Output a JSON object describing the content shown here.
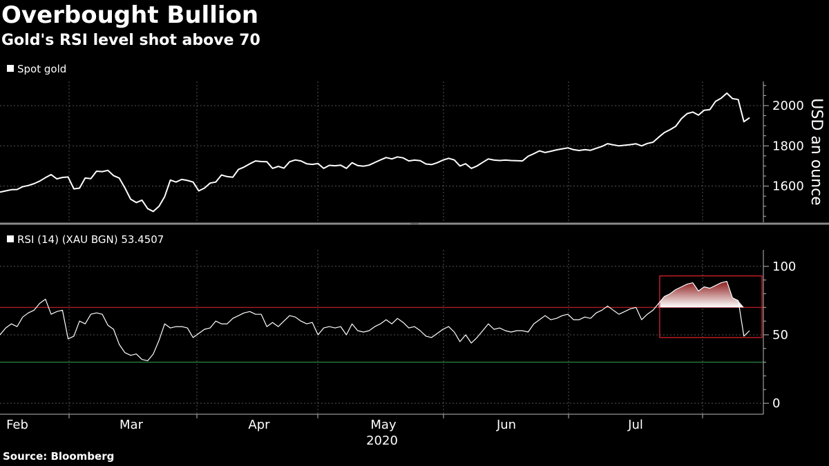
{
  "title": "Overbought Bullion",
  "subtitle": "Gold's RSI level shot above 70",
  "source": "Source: Bloomberg",
  "colors": {
    "background": "#000000",
    "line": "#ffffff",
    "overbought_line": "#e8252e",
    "oversold_line": "#2fa84f",
    "highlight_box": "#e8252e",
    "highlight_fill": "#8b1a1a"
  },
  "chart_data": [
    {
      "type": "line",
      "legend": "Spot gold",
      "ylabel": "USD an ounce",
      "yticks": [
        1600,
        1800,
        2000
      ],
      "ylim": [
        1420,
        2120
      ],
      "grid": true,
      "series": [
        {
          "name": "Spot gold",
          "values": [
            1570,
            1576,
            1582,
            1583,
            1597,
            1603,
            1612,
            1625,
            1642,
            1657,
            1636,
            1643,
            1645,
            1586,
            1590,
            1640,
            1637,
            1674,
            1672,
            1678,
            1652,
            1640,
            1591,
            1535,
            1518,
            1530,
            1488,
            1474,
            1500,
            1548,
            1630,
            1620,
            1633,
            1628,
            1620,
            1576,
            1590,
            1615,
            1620,
            1655,
            1647,
            1644,
            1683,
            1695,
            1711,
            1725,
            1722,
            1721,
            1688,
            1698,
            1689,
            1721,
            1730,
            1725,
            1711,
            1708,
            1712,
            1688,
            1703,
            1701,
            1704,
            1688,
            1716,
            1702,
            1699,
            1704,
            1717,
            1730,
            1742,
            1735,
            1745,
            1740,
            1725,
            1729,
            1726,
            1710,
            1707,
            1716,
            1729,
            1738,
            1730,
            1700,
            1711,
            1688,
            1700,
            1718,
            1735,
            1729,
            1727,
            1729,
            1727,
            1726,
            1725,
            1748,
            1761,
            1775,
            1767,
            1773,
            1780,
            1785,
            1790,
            1781,
            1777,
            1781,
            1778,
            1788,
            1797,
            1811,
            1805,
            1800,
            1803,
            1806,
            1810,
            1800,
            1812,
            1818,
            1843,
            1866,
            1880,
            1897,
            1935,
            1960,
            1968,
            1953,
            1977,
            1980,
            2021,
            2037,
            2062,
            2035,
            2030,
            1920,
            1940
          ]
        }
      ]
    },
    {
      "type": "line",
      "legend": "RSI (14) (XAU BGN) 53.4507",
      "yticks": [
        0,
        50,
        100
      ],
      "ylim": [
        -8,
        112
      ],
      "reference_lines": [
        70,
        30
      ],
      "x_tick_labels": [
        "Feb",
        "Mar",
        "Apr",
        "May",
        "Jun",
        "Jul"
      ],
      "x_year_label": "2020",
      "grid": true,
      "highlight": {
        "start_index": 118,
        "end_index": 132,
        "ymin": 48,
        "ymax": 93
      },
      "series": [
        {
          "name": "RSI (14) (XAU BGN)",
          "values": [
            50,
            55,
            58,
            56,
            63,
            66,
            68,
            73,
            76,
            65,
            67,
            68,
            47,
            49,
            60,
            58,
            65,
            66,
            65,
            57,
            54,
            43,
            37,
            35,
            36,
            32,
            31,
            36,
            46,
            58,
            55,
            56,
            56,
            55,
            48,
            51,
            54,
            55,
            60,
            58,
            58,
            62,
            64,
            66,
            67,
            65,
            65,
            56,
            59,
            56,
            60,
            64,
            63,
            60,
            58,
            59,
            50,
            55,
            56,
            55,
            56,
            50,
            58,
            53,
            52,
            53,
            56,
            58,
            61,
            58,
            62,
            59,
            55,
            56,
            53,
            49,
            48,
            51,
            54,
            56,
            52,
            45,
            50,
            44,
            48,
            53,
            58,
            54,
            55,
            53,
            52,
            53,
            53,
            52,
            58,
            61,
            64,
            61,
            62,
            64,
            65,
            61,
            61,
            63,
            62,
            66,
            68,
            71,
            68,
            65,
            67,
            69,
            70,
            61,
            65,
            68,
            73,
            78,
            80,
            83,
            85,
            87,
            88,
            82,
            85,
            84,
            86,
            88,
            89,
            77,
            75,
            49,
            53
          ]
        }
      ]
    }
  ]
}
